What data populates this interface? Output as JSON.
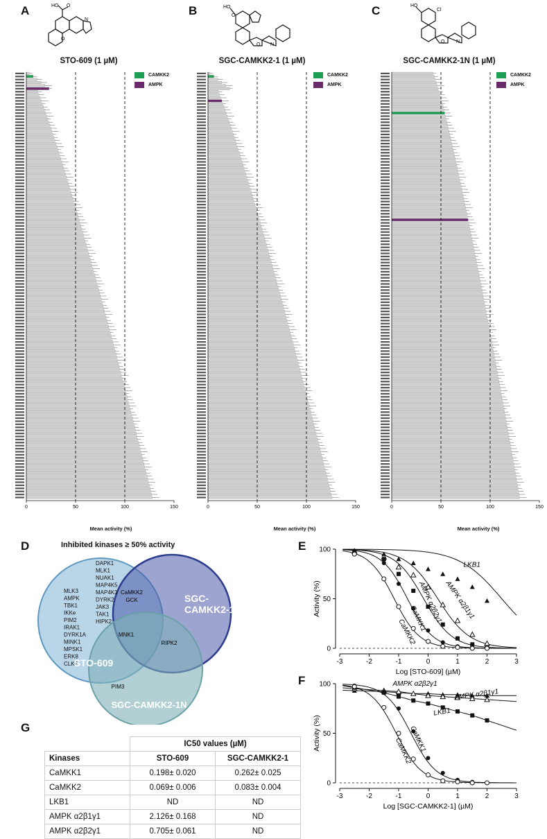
{
  "panels": {
    "A": {
      "letter": "A",
      "title": "STO-609 (1 µM)",
      "xlabel": "Mean activity (%)"
    },
    "B": {
      "letter": "B",
      "title": "SGC-CAMKK2-1 (1 µM)",
      "xlabel": "Mean activity (%)"
    },
    "C": {
      "letter": "C",
      "title": "SGC-CAMKK2-1N (1 µM)",
      "xlabel": "Mean activity (%)"
    },
    "D": {
      "letter": "D",
      "title": "Inhibited kinases ≥ 50% activity"
    },
    "E": {
      "letter": "E"
    },
    "F": {
      "letter": "F"
    },
    "G": {
      "letter": "G"
    }
  },
  "legend": {
    "camkk2": "CAMKK2",
    "ampk": "AMPK"
  },
  "colors": {
    "camkk2": "#1f9e55",
    "ampk": "#6a2b6a",
    "bar": "#cfcfcf"
  },
  "bar_axis_ticks": [
    "0",
    "50",
    "100",
    "150"
  ],
  "chart_data": [
    {
      "type": "bar",
      "title": "STO-609 (1 µM)",
      "xlabel": "Mean activity (%)",
      "xlim": [
        0,
        150
      ],
      "n_kinases": 140,
      "highlight": {
        "CAMKK2": 1,
        "AMPK": 5
      },
      "values_start": 3,
      "values_end": 128
    },
    {
      "type": "bar",
      "title": "SGC-CAMKK2-1 (1 µM)",
      "xlabel": "Mean activity (%)",
      "xlim": [
        0,
        150
      ],
      "n_kinases": 140,
      "highlight": {
        "CAMKK2": 1,
        "AMPK": 9
      },
      "values_start": 2,
      "values_end": 126
    },
    {
      "type": "bar",
      "title": "SGC-CAMKK2-1N (1 µM)",
      "xlabel": "Mean activity (%)",
      "xlim": [
        0,
        150
      ],
      "n_kinases": 140,
      "highlight": {
        "CAMKK2": 13,
        "AMPK": 48
      },
      "values_start": 42,
      "values_end": 130
    },
    {
      "type": "line",
      "xlabel": "Log [STO-609] (µM)",
      "ylabel": "Activity (%)",
      "xlim": [
        -3,
        3
      ],
      "ylim": [
        0,
        100
      ],
      "xticks": [
        "-3",
        "-2",
        "-1",
        "0",
        "1",
        "2",
        "3"
      ],
      "yticks": [
        "0",
        "50",
        "100"
      ],
      "series": [
        {
          "name": "LKB1",
          "ic50": 2.5,
          "hill": 0.6,
          "x": [
            -2.5,
            -1.5,
            -1.0,
            -0.5,
            0,
            0.5,
            1.0,
            1.5,
            2.0
          ],
          "y": [
            97,
            95,
            90,
            86,
            80,
            75,
            70,
            62,
            48
          ]
        },
        {
          "name": "AMPK α2β1γ1",
          "ic50": 0.33,
          "hill": 0.8,
          "x": [
            -2.5,
            -1.5,
            -1.0,
            -0.5,
            0,
            0.5,
            1.0,
            1.5,
            2.0
          ],
          "y": [
            98,
            92,
            82,
            74,
            62,
            44,
            28,
            14,
            5
          ]
        },
        {
          "name": "AMPK α2β2γ1",
          "ic50": -0.15,
          "hill": 0.9,
          "x": [
            -2.5,
            -1.5,
            -1.0,
            -0.5,
            0,
            0.5,
            1.0,
            1.5,
            2.0
          ],
          "y": [
            98,
            90,
            75,
            58,
            42,
            24,
            10,
            4,
            1
          ]
        },
        {
          "name": "CaMKK1",
          "ic50": -0.7,
          "hill": 1.0,
          "x": [
            -2.5,
            -1.5,
            -1.0,
            -0.5,
            0,
            0.5,
            1.0,
            1.5,
            2.0
          ],
          "y": [
            96,
            86,
            65,
            40,
            18,
            6,
            2,
            1,
            0
          ]
        },
        {
          "name": "CaMKK2",
          "ic50": -1.15,
          "hill": 1.0,
          "x": [
            -2.5,
            -1.5,
            -1.0,
            -0.5,
            0,
            0.5,
            1.0,
            1.5,
            2.0
          ],
          "y": [
            95,
            70,
            42,
            20,
            7,
            2,
            1,
            0,
            0
          ]
        }
      ]
    },
    {
      "type": "line",
      "xlabel": "Log [SGC-CAMKK2-1] (µM)",
      "ylabel": "Activity (%)",
      "xlim": [
        -3,
        3
      ],
      "ylim": [
        0,
        100
      ],
      "xticks": [
        "-3",
        "-2",
        "-1",
        "0",
        "1",
        "2",
        "3"
      ],
      "yticks": [
        "0",
        "50",
        "100"
      ],
      "series": [
        {
          "name": "AMPK α2β2γ1",
          "x": [
            -2.5,
            -1.5,
            -1.0,
            -0.5,
            0,
            0.5,
            1.0,
            1.5,
            2.0
          ],
          "y": [
            93,
            92,
            91,
            90,
            90,
            89,
            89,
            88,
            88
          ]
        },
        {
          "name": "AMPK α2β1γ1",
          "x": [
            -2.5,
            -1.5,
            -1.0,
            -0.5,
            0,
            0.5,
            1.0,
            1.5,
            2.0
          ],
          "y": [
            95,
            93,
            92,
            90,
            88,
            87,
            86,
            85,
            84
          ]
        },
        {
          "name": "LKB1",
          "x": [
            -2.5,
            -1.5,
            -1.0,
            -0.5,
            0,
            0.5,
            1.0,
            1.5,
            2.0
          ],
          "y": [
            96,
            91,
            87,
            83,
            80,
            76,
            72,
            68,
            63
          ]
        },
        {
          "name": "CaMKK1",
          "ic50": -0.58,
          "hill": 1.0,
          "x": [
            -2.5,
            -1.5,
            -1.0,
            -0.5,
            0,
            0.5,
            1.0,
            1.5,
            2.0
          ],
          "y": [
            98,
            92,
            75,
            52,
            25,
            10,
            3,
            1,
            0
          ]
        },
        {
          "name": "CaMKK2",
          "ic50": -1.08,
          "hill": 1.0,
          "x": [
            -2.5,
            -1.5,
            -1.0,
            -0.5,
            0,
            0.5,
            1.0,
            1.5,
            2.0
          ],
          "y": [
            97,
            76,
            50,
            24,
            8,
            2,
            1,
            0,
            0
          ]
        }
      ]
    }
  ],
  "venn": {
    "circles": [
      {
        "name": "STO-609",
        "color": "#7fb3d5"
      },
      {
        "name": "SGC-CAMKK2-1",
        "color": "#4a5aa8"
      },
      {
        "name": "SGC-CAMKK2-1N",
        "color": "#7fb1b8"
      }
    ],
    "sto_only": [
      "MLK3",
      "AMPK",
      "TBK1",
      "IKKe",
      "PIM2",
      "IRAK1",
      "DYRK1A",
      "MINK1",
      "MPSK1",
      "ERK8",
      "CLK2"
    ],
    "sto_only_2": [
      "DAPK1",
      "MLK1",
      "NUAK1",
      "MAP4K5",
      "MAP4K3",
      "DYRK2",
      "JAK3",
      "TAK1",
      "HIPK2"
    ],
    "sto_sgc1": [
      "CaMKK2",
      "GCK"
    ],
    "all_three": "MNK1",
    "sgc1_sgc1n": "RIPK2",
    "sto_sgc1n": "PIM3"
  },
  "table": {
    "header_group": "IC50 values (µM)",
    "columns": [
      "Kinases",
      "STO-609",
      "SGC-CAMKK2-1"
    ],
    "rows": [
      [
        "CaMKK1",
        "0.198± 0.020",
        "0.262± 0.025"
      ],
      [
        "CaMKK2",
        "0.069± 0.006",
        "0.083± 0.004"
      ],
      [
        "LKB1",
        "ND",
        "ND"
      ],
      [
        "AMPK α2β1γ1",
        "2.126± 0.168",
        "ND"
      ],
      [
        "AMPK α2β2γ1",
        "0.705± 0.061",
        "ND"
      ]
    ]
  }
}
